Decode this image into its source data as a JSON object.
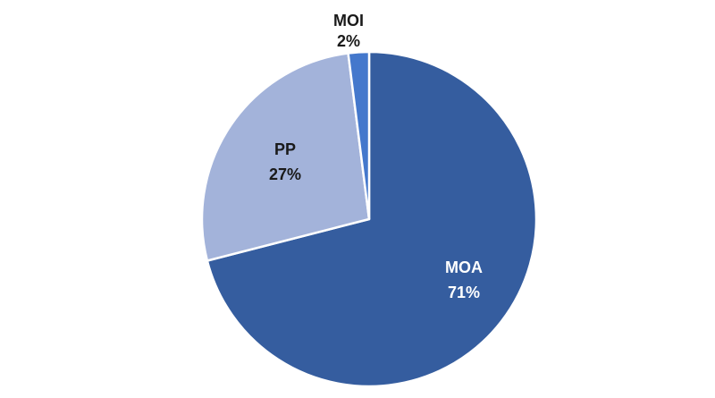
{
  "chart_data": {
    "type": "pie",
    "slices": [
      {
        "name": "MOA",
        "value": 71,
        "label": "71%",
        "color": "#355d9f"
      },
      {
        "name": "PP",
        "value": 27,
        "label": "27%",
        "color": "#a3b3da"
      },
      {
        "name": "MOI",
        "value": 2,
        "label": "2%",
        "color": "#4478cc"
      }
    ],
    "start_angle_deg": 0,
    "direction": "clockwise",
    "label_colors": {
      "on_dark": "#ffffff",
      "on_light": "#1a1a1a"
    },
    "slice_border_color": "#ffffff"
  }
}
